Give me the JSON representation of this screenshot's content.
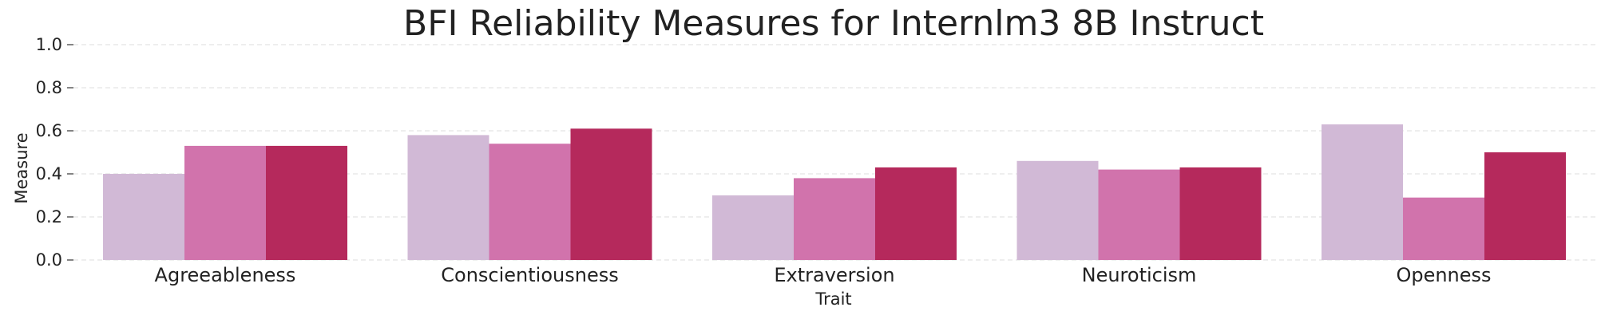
{
  "chart_data": {
    "type": "bar",
    "title": "BFI Reliability Measures for Internlm3 8B Instruct",
    "xlabel": "Trait",
    "ylabel": "Measure",
    "ylim": [
      0,
      1.0
    ],
    "yticks": [
      "0.0",
      "0.2",
      "0.4",
      "0.6",
      "0.8",
      "1.0"
    ],
    "grid": true,
    "legend": "none",
    "categories": [
      "Agreeableness",
      "Conscientiousness",
      "Extraversion",
      "Neuroticism",
      "Openness"
    ],
    "series": [
      {
        "color": "#d1b9d6",
        "values": [
          0.4,
          0.58,
          0.3,
          0.46,
          0.63
        ]
      },
      {
        "color": "#d173ac",
        "values": [
          0.53,
          0.54,
          0.38,
          0.42,
          0.29
        ]
      },
      {
        "color": "#b5295c",
        "values": [
          0.53,
          0.61,
          0.43,
          0.43,
          0.5
        ]
      }
    ]
  }
}
